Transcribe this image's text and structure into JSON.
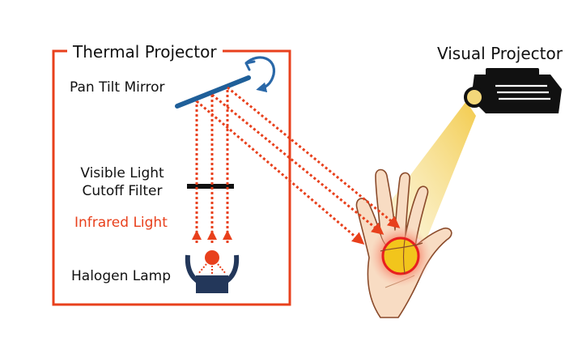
{
  "labels": {
    "thermal_projector": "Thermal Projector",
    "pan_tilt_mirror": "Pan Tilt Mirror",
    "visible_filter_line1": "Visible Light",
    "visible_filter_line2": "Cutoff Filter",
    "infrared_light": "Infrared Light",
    "halogen_lamp": "Halogen Lamp",
    "visual_projector": "Visual Projector"
  },
  "colors": {
    "frame": "#e8401c",
    "ray": "#e8401c",
    "infrared_text": "#e8401c",
    "mirror": "#1f5f99",
    "rotate_arrow": "#2a68a8",
    "filter": "#111111",
    "lamp_body": "#23375a",
    "lamp_bulb": "#e8401c",
    "projector_body": "#111111",
    "projector_lens": "#f3d77a",
    "projector_beam": "#f2c843",
    "hand_skin": "#f8dcc3",
    "hand_outline": "#8a4a2a",
    "spot_outer": "#f57a5e",
    "spot_ring": "#e81f1f",
    "spot_core": "#f2c51c"
  },
  "icons": [
    "rotate-arrow-icon",
    "projector-icon",
    "halogen-lamp-icon",
    "hand-icon"
  ]
}
